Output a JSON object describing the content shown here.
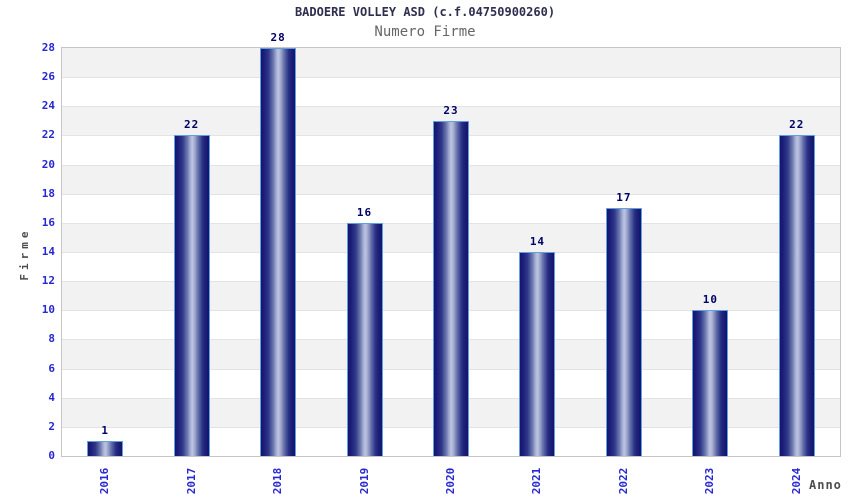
{
  "header": {
    "title": "BADOERE VOLLEY ASD (c.f.04750900260)",
    "subtitle": "Numero Firme"
  },
  "colors": {
    "title_color": "#2e2e4f",
    "subtitle_color": "#666666",
    "tick_label": "#2727d3",
    "value_label": "#000066",
    "axis_label": "#4d4d4d",
    "plot_border": "#c6c6c6",
    "band_gray": "#f2f2f2",
    "band_white": "#ffffff",
    "gridline": "#e3e3e3",
    "bar_border": "#5fa0e0",
    "bar_dark": "#16156d",
    "bar_light": "#bdc5e1"
  },
  "chart_data": {
    "type": "bar",
    "title": "BADOERE VOLLEY ASD (c.f.04750900260)",
    "subtitle": "Numero Firme",
    "categories": [
      "2016",
      "2017",
      "2018",
      "2019",
      "2020",
      "2021",
      "2022",
      "2023",
      "2024"
    ],
    "values": [
      1,
      22,
      28,
      16,
      23,
      14,
      17,
      10,
      22
    ],
    "xlabel": "Anno",
    "ylabel": "Firme",
    "ylim": [
      0,
      28
    ],
    "ytick_step": 2,
    "yticks": [
      0,
      2,
      4,
      6,
      8,
      10,
      12,
      14,
      16,
      18,
      20,
      22,
      24,
      26,
      28
    ],
    "grid": "alternating horizontal gray/white bands every 2 units, light gridlines",
    "legend": "none",
    "bar_labels_shown": true,
    "x_tick_rotation_deg": 90
  }
}
